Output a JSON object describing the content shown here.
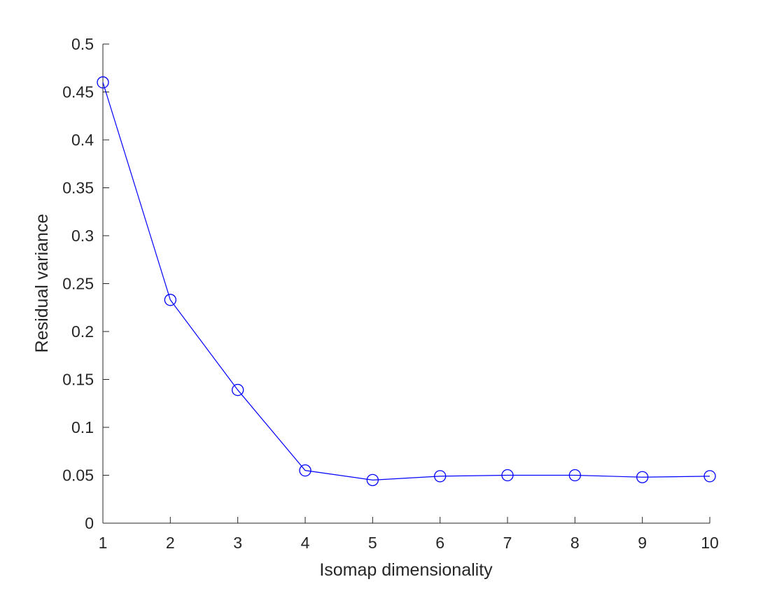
{
  "chart_data": {
    "type": "line",
    "title": "",
    "xlabel": "Isomap dimensionality",
    "ylabel": "Residual variance",
    "xlim": [
      1,
      10
    ],
    "ylim": [
      0,
      0.5
    ],
    "xticks": [
      1,
      2,
      3,
      4,
      5,
      6,
      7,
      8,
      9,
      10
    ],
    "yticks": [
      0,
      0.05,
      0.1,
      0.15,
      0.2,
      0.25,
      0.3,
      0.35,
      0.4,
      0.45,
      0.5
    ],
    "xtick_labels": [
      "1",
      "2",
      "3",
      "4",
      "5",
      "6",
      "7",
      "8",
      "9",
      "10"
    ],
    "ytick_labels": [
      "0",
      "0.05",
      "0.1",
      "0.15",
      "0.2",
      "0.25",
      "0.3",
      "0.35",
      "0.4",
      "0.45",
      "0.5"
    ],
    "grid": false,
    "marker": "circle",
    "line_color": "#0000ff",
    "axis_color": "#262626",
    "series": [
      {
        "x": [
          1,
          2,
          3,
          4,
          5,
          6,
          7,
          8,
          9,
          10
        ],
        "values": [
          0.46,
          0.233,
          0.139,
          0.055,
          0.045,
          0.049,
          0.05,
          0.05,
          0.048,
          0.049
        ]
      }
    ]
  }
}
